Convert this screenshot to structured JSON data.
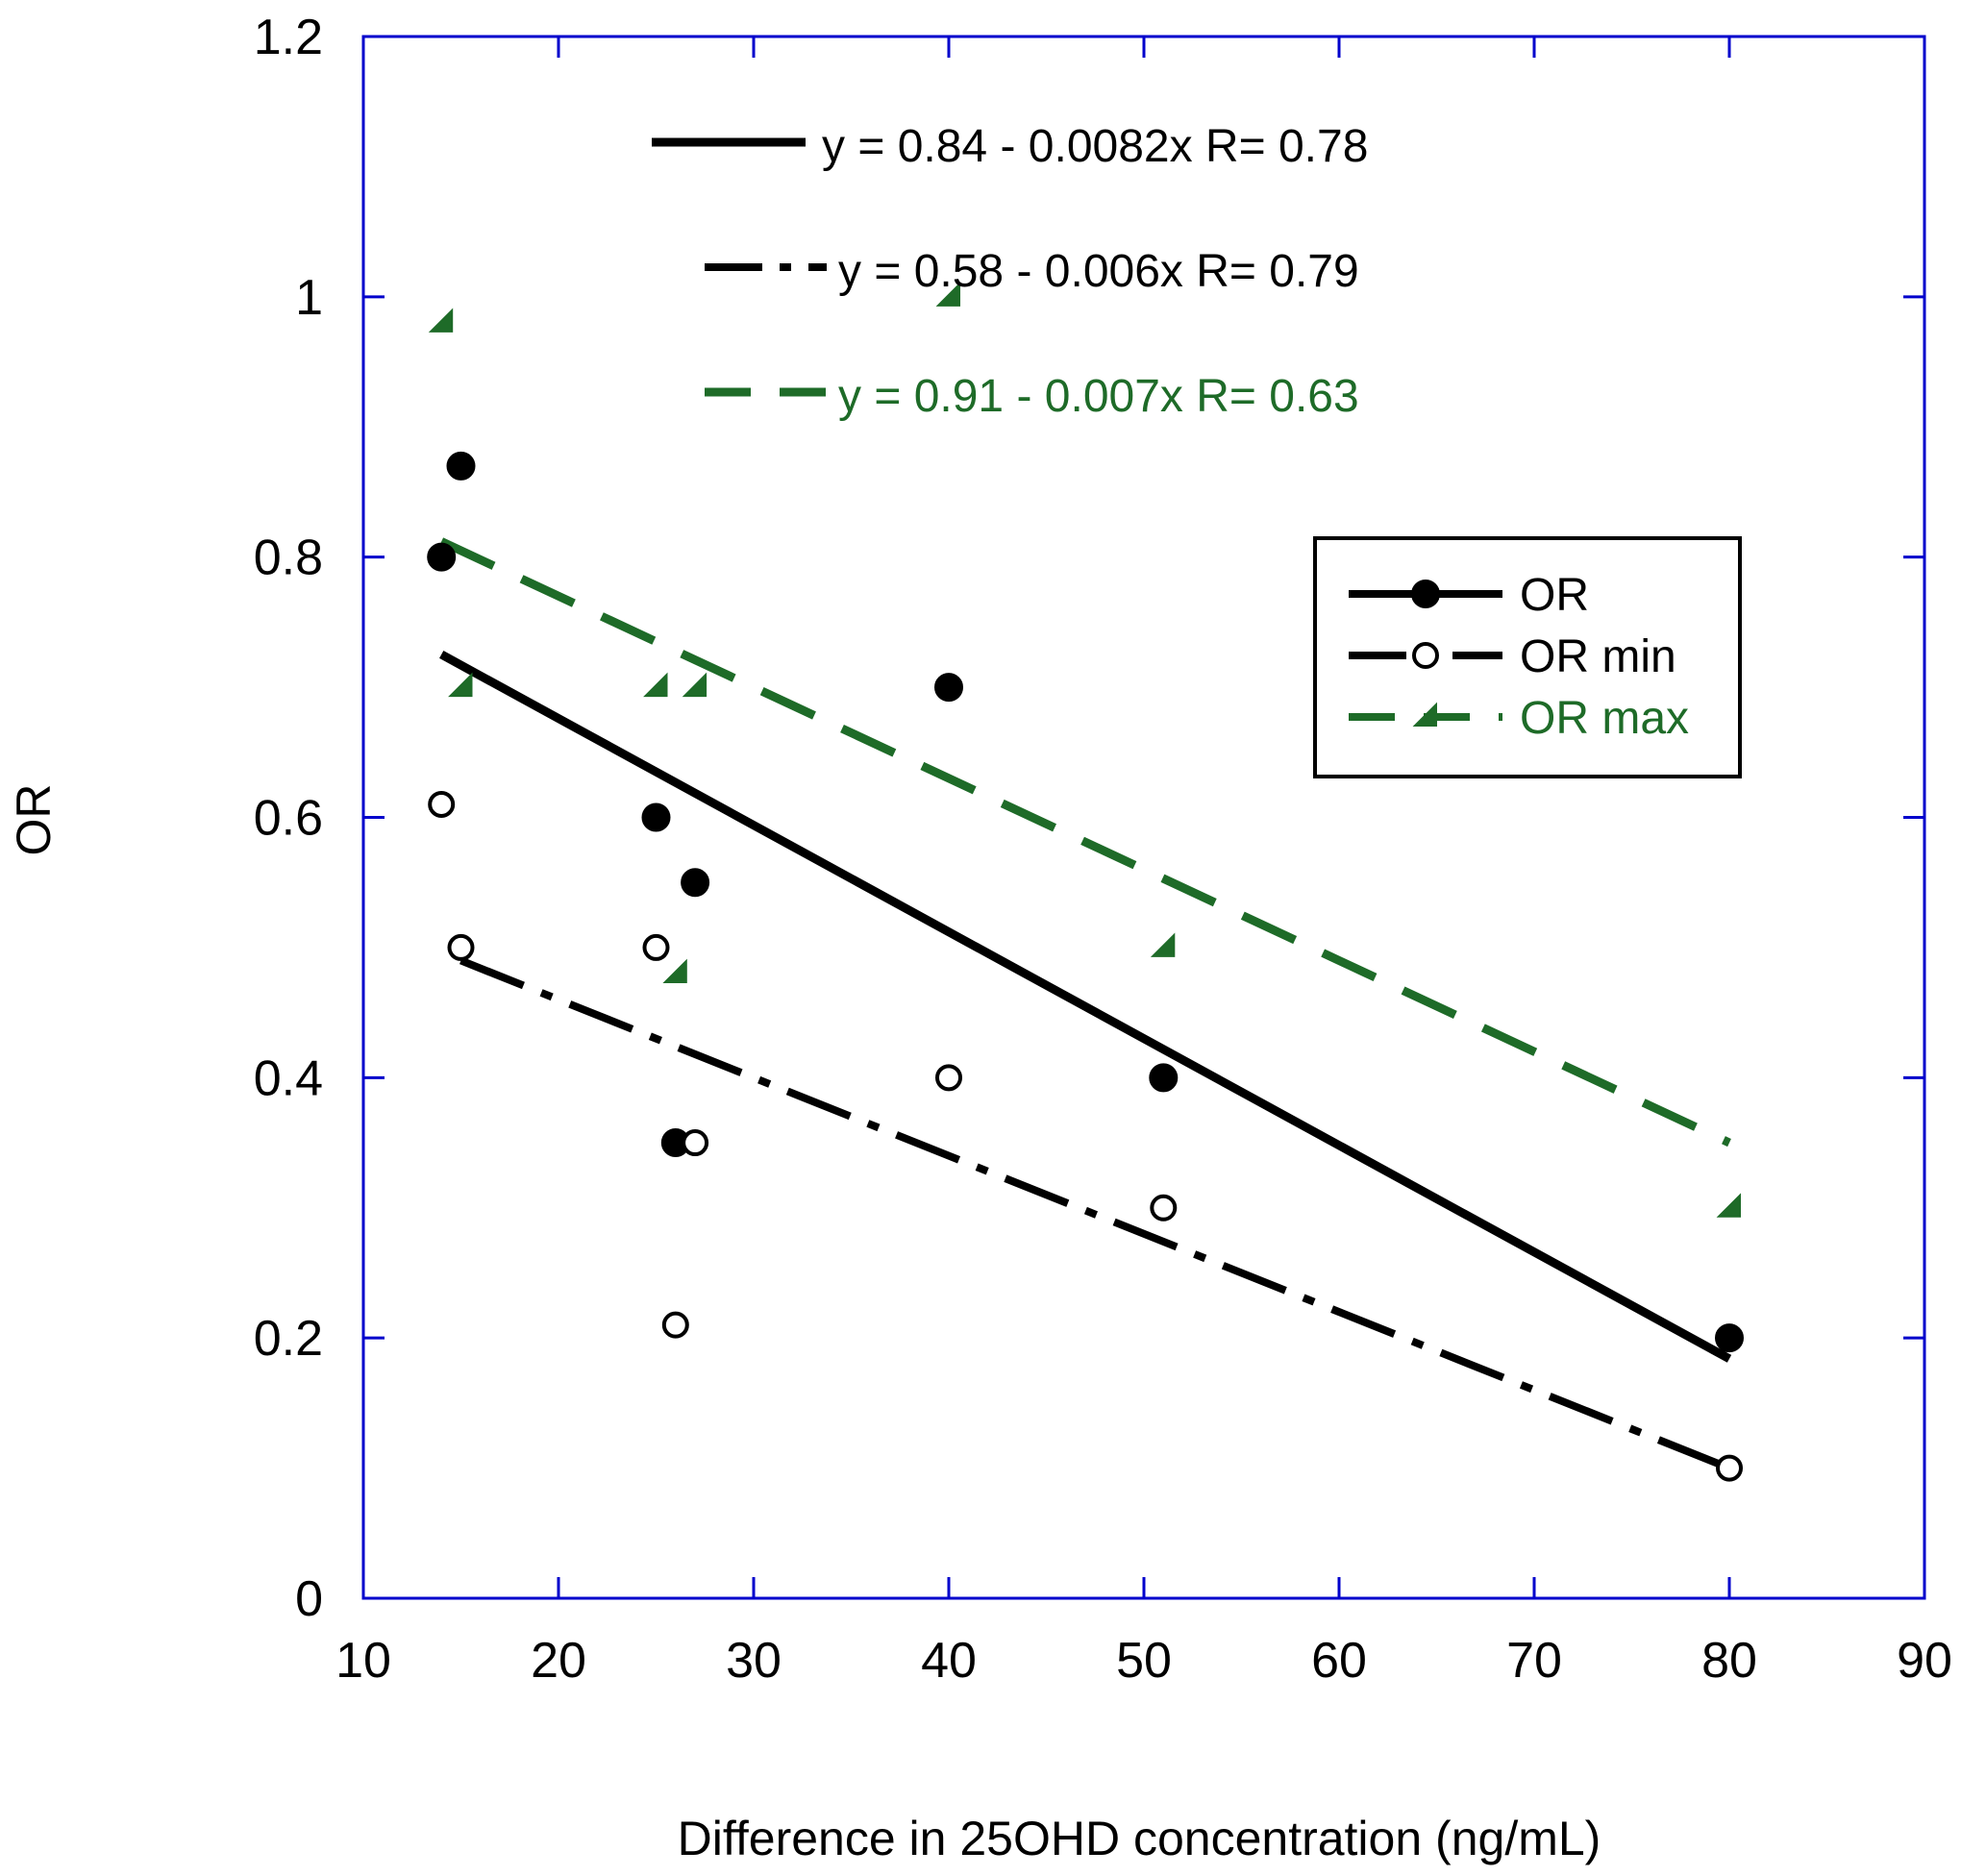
{
  "chart_data": {
    "type": "scatter",
    "xlabel": "Difference in 25OHD concentration (ng/mL)",
    "ylabel": "OR",
    "xlim": [
      10,
      90
    ],
    "ylim": [
      0,
      1.2
    ],
    "xticks": [
      10,
      20,
      30,
      40,
      50,
      60,
      70,
      80,
      90
    ],
    "yticks": [
      0,
      0.2,
      0.4,
      0.6,
      0.8,
      1,
      1.2
    ],
    "ytick_labels": [
      "0",
      "0.2",
      "0.4",
      "0.6",
      "0.8",
      "1",
      "1.2"
    ],
    "series": [
      {
        "name": "OR",
        "color": "#000000",
        "marker": "filled-circle",
        "points": [
          [
            14,
            0.8
          ],
          [
            15,
            0.87
          ],
          [
            25,
            0.6
          ],
          [
            26,
            0.35
          ],
          [
            27,
            0.55
          ],
          [
            40,
            0.7
          ],
          [
            51,
            0.4
          ],
          [
            80,
            0.2
          ]
        ],
        "fit": {
          "intercept": 0.84,
          "slope": -0.0082,
          "x_range": [
            14,
            80
          ],
          "style": "solid",
          "label": "y = 0.84 - 0.0082x   R= 0.78"
        }
      },
      {
        "name": "OR min",
        "color": "#000000",
        "marker": "open-circle",
        "points": [
          [
            14,
            0.61
          ],
          [
            15,
            0.5
          ],
          [
            25,
            0.5
          ],
          [
            26,
            0.21
          ],
          [
            27,
            0.35
          ],
          [
            40,
            0.4
          ],
          [
            51,
            0.3
          ],
          [
            80,
            0.1
          ]
        ],
        "fit": {
          "intercept": 0.58,
          "slope": -0.006,
          "x_range": [
            15,
            80
          ],
          "style": "dash-dot",
          "label": "y = 0.58 - 0.006x   R= 0.79"
        }
      },
      {
        "name": "OR max",
        "color": "#1e6b28",
        "marker": "triangle",
        "points": [
          [
            14,
            0.98
          ],
          [
            15,
            0.7
          ],
          [
            25,
            0.7
          ],
          [
            26,
            0.48
          ],
          [
            27,
            0.7
          ],
          [
            40,
            1.0
          ],
          [
            51,
            0.5
          ],
          [
            80,
            0.3
          ]
        ],
        "fit": {
          "intercept": 0.91,
          "slope": -0.007,
          "x_range": [
            14,
            80
          ],
          "style": "dashed",
          "label": "y = 0.91 - 0.007x   R= 0.63"
        }
      }
    ],
    "legend": {
      "position": "upper-right",
      "entries": [
        "OR",
        "OR min",
        "OR max"
      ]
    },
    "colors": {
      "axis": "#0000cc",
      "ink": "#000000",
      "green": "#1e6b28"
    }
  }
}
